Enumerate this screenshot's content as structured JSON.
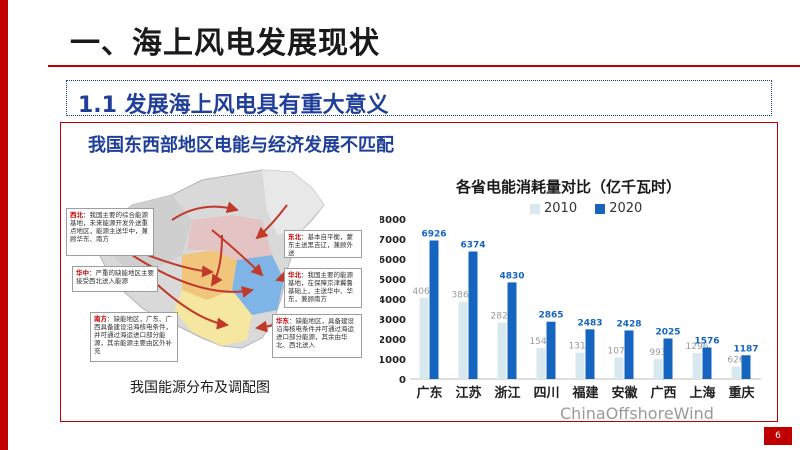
{
  "slide": {
    "title": "一、海上风电发展现状",
    "section": "1.1  发展海上风电具有重大意义",
    "subtitle": "我国东西部地区电能与经济发展不匹配",
    "page": "6",
    "watermark": "ChinaOffshoreWind"
  },
  "map": {
    "caption": "我国能源分布及调配图",
    "notes": [
      {
        "region": "西北",
        "text": "：我国主要的综合能源基地，未来能源开发外送重点地区，能源主送华中，兼顾华东、南方"
      },
      {
        "region": "华中",
        "text": "：严重的缺能地区主要接受西北送入能源"
      },
      {
        "region": "南方",
        "text": "：缺能地区，广东、广西具备建设沿海核电条件，并可通过海运进口部分能源，其余能源主要由区外补充"
      },
      {
        "region": "东北",
        "text": "：基本自平衡，蒙东主送黑吉辽，兼顾外送"
      },
      {
        "region": "华北",
        "text": "：我国主要的能源基地，在保障京津冀鲁基础上，主送华中、华东，兼顾南方"
      },
      {
        "region": "华东",
        "text": "：缺能地区，具备建设沿海核电条件并可通过海运进口部分能源，其余由华北、西北送入"
      }
    ]
  },
  "colors": {
    "accent": "#c00000",
    "title_blue": "#1f3f99",
    "bar_2010": "#d7e9ee",
    "bar_2020": "#1565c0"
  },
  "chart_data": {
    "type": "bar",
    "title": "各省电能消耗量对比（亿千瓦时）",
    "categories": [
      "广东",
      "江苏",
      "浙江",
      "四川",
      "福建",
      "安徽",
      "广西",
      "上海",
      "重庆"
    ],
    "series": [
      {
        "name": "2010",
        "values": [
          4060,
          3864,
          2821,
          1549,
          1315,
          1078,
          993,
          1296,
          626
        ]
      },
      {
        "name": "2020",
        "values": [
          6926,
          6374,
          4830,
          2865,
          2483,
          2428,
          2025,
          1576,
          1187
        ]
      }
    ],
    "ylim": [
      0,
      8000
    ],
    "yticks": [
      "0",
      "1000",
      "2000",
      "3000",
      "4000",
      "5000",
      "6000",
      "7000",
      "8000"
    ],
    "grid": false,
    "legend": "top"
  }
}
